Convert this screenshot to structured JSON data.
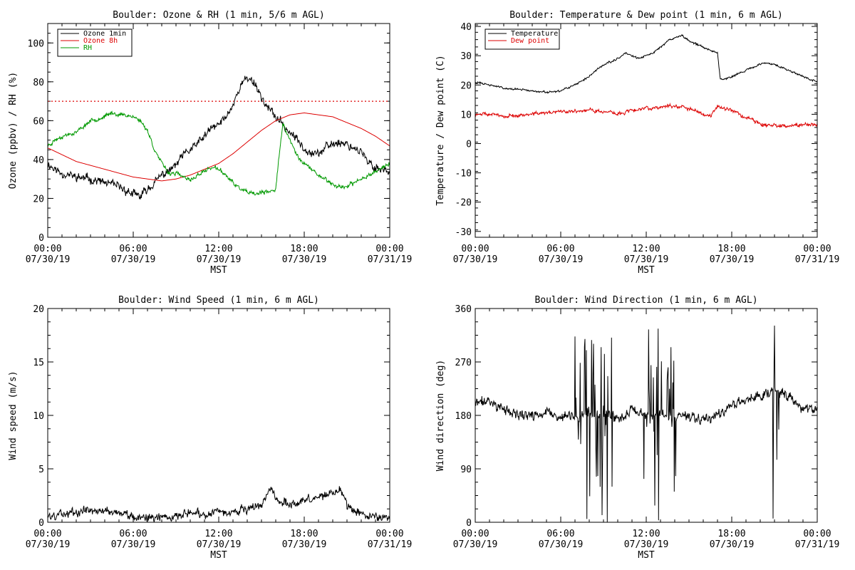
{
  "colors": {
    "ozone_1min": "#000000",
    "ozone_8h": "#dd0000",
    "rh": "#009900",
    "temperature": "#000000",
    "dew_point": "#dd0000",
    "wind": "#000000",
    "threshold": "#dd0000"
  },
  "chart_data": [
    {
      "id": "ozone",
      "type": "line",
      "title": "Boulder: Ozone & RH (1 min, 5/6 m AGL)",
      "xlabel": "MST",
      "ylabel": "Ozone (ppbv) / RH (%)",
      "xlim": [
        0,
        24
      ],
      "ylim": [
        0,
        110
      ],
      "yticks": [
        0,
        20,
        40,
        60,
        80,
        100
      ],
      "x_ticks": [
        "00:00",
        "06:00",
        "12:00",
        "18:00",
        "00:00"
      ],
      "x_dates": [
        "07/30/19",
        "07/30/19",
        "07/30/19",
        "07/30/19",
        "07/31/19"
      ],
      "legend_position": "top-left",
      "reference_line": {
        "y": 70,
        "color": "#dd0000",
        "style": "dotted"
      },
      "series": [
        {
          "name": "Ozone 1min",
          "color": "#000000",
          "noise": 2.5,
          "seed": 11,
          "x": [
            0,
            0.5,
            1,
            2,
            3,
            4,
            5,
            5.5,
            6,
            6.5,
            7,
            7.5,
            8,
            8.5,
            9,
            9.5,
            10,
            10.5,
            11,
            11.5,
            12,
            12.5,
            13,
            13.5,
            14,
            14.5,
            15,
            15.5,
            16,
            16.5,
            17,
            17.5,
            18,
            18.5,
            19,
            19.5,
            20,
            20.5,
            21,
            21.5,
            22,
            22.5,
            23,
            23.5,
            24
          ],
          "y": [
            38,
            35,
            33,
            31,
            30,
            28,
            26,
            24,
            22,
            21,
            25,
            28,
            32,
            34,
            37,
            42,
            45,
            48,
            52,
            56,
            58,
            62,
            68,
            78,
            82,
            80,
            72,
            66,
            62,
            58,
            54,
            50,
            46,
            44,
            43,
            46,
            48,
            49,
            48,
            46,
            44,
            38,
            36,
            35,
            34
          ]
        },
        {
          "name": "Ozone 8h",
          "color": "#dd0000",
          "noise": 0,
          "seed": 0,
          "x": [
            0,
            2,
            4,
            6,
            7,
            8,
            9,
            10,
            11,
            12,
            13,
            14,
            15,
            16,
            17,
            18,
            19,
            20,
            21,
            22,
            23,
            24
          ],
          "y": [
            46,
            39,
            35,
            31,
            30,
            29,
            30,
            32,
            35,
            38,
            43,
            49,
            55,
            60,
            63,
            64,
            63,
            62,
            59,
            56,
            52,
            47
          ]
        },
        {
          "name": "RH",
          "color": "#009900",
          "noise": 1.2,
          "seed": 23,
          "x": [
            0,
            0.5,
            1,
            2,
            2.5,
            3,
            3.5,
            4,
            4.5,
            5,
            5.5,
            6,
            6.5,
            7,
            7.5,
            8,
            8.5,
            9,
            9.5,
            10,
            10.5,
            11,
            11.5,
            12,
            12.5,
            13,
            13.5,
            14,
            14.5,
            15,
            15.5,
            16,
            16.2,
            16.5,
            17,
            17.5,
            18,
            18.5,
            19,
            19.5,
            20,
            20.5,
            21,
            21.5,
            22,
            22.5,
            23,
            23.5,
            24
          ],
          "y": [
            47,
            50,
            52,
            54,
            57,
            60,
            61,
            62,
            64,
            63,
            63,
            62,
            60,
            55,
            45,
            38,
            33,
            33,
            31,
            29,
            32,
            34,
            36,
            35,
            32,
            28,
            25,
            23,
            22,
            23,
            23,
            25,
            40,
            58,
            50,
            42,
            38,
            35,
            32,
            30,
            27,
            26,
            26,
            28,
            30,
            32,
            34,
            36,
            38
          ]
        }
      ]
    },
    {
      "id": "temperature",
      "type": "line",
      "title": "Boulder: Temperature & Dew point (1 min, 6 m AGL)",
      "xlabel": "MST",
      "ylabel": "Temperature / Dew point (C)",
      "xlim": [
        0,
        24
      ],
      "ylim": [
        -32,
        41
      ],
      "yticks": [
        -30,
        -20,
        -10,
        0,
        10,
        20,
        30,
        40
      ],
      "x_ticks": [
        "00:00",
        "06:00",
        "12:00",
        "18:00",
        "00:00"
      ],
      "x_dates": [
        "07/30/19",
        "07/30/19",
        "07/30/19",
        "07/30/19",
        "07/31/19"
      ],
      "legend_position": "top-left",
      "series": [
        {
          "name": "Temperature",
          "color": "#000000",
          "noise": 0.4,
          "seed": 31,
          "x": [
            0,
            0.5,
            1,
            2,
            3,
            4,
            5,
            5.5,
            6,
            7,
            8,
            8.5,
            9,
            9.5,
            10,
            10.5,
            11,
            11.5,
            12,
            12.5,
            13,
            13.5,
            14,
            14.5,
            15,
            15.5,
            16,
            16.5,
            17,
            17.2,
            17.5,
            18,
            18.5,
            19,
            19.5,
            20,
            20.5,
            21,
            21.5,
            22,
            22.5,
            23,
            23.5,
            24
          ],
          "y": [
            21,
            20.5,
            20,
            19,
            18.5,
            18,
            17.5,
            17.5,
            18,
            20,
            23,
            25,
            27,
            28,
            29,
            31,
            30,
            29,
            30,
            31,
            33,
            35,
            36,
            37,
            35,
            34,
            33,
            32,
            31,
            22,
            22,
            23,
            24,
            25,
            26,
            27,
            27.5,
            27,
            26,
            25,
            24,
            23,
            22,
            21
          ]
        },
        {
          "name": "Dew point",
          "color": "#dd0000",
          "noise": 0.7,
          "seed": 47,
          "x": [
            0,
            1,
            2,
            3,
            4,
            5,
            6,
            7,
            8,
            9,
            10,
            11,
            12,
            13,
            14,
            15,
            16,
            16.5,
            17,
            17.5,
            18,
            18.5,
            19,
            19.5,
            20,
            21,
            22,
            23,
            24
          ],
          "y": [
            10,
            10,
            9.5,
            9.5,
            10,
            10.5,
            11,
            11,
            11.5,
            11,
            10,
            11.5,
            12,
            12.5,
            13,
            12,
            10,
            9.5,
            13,
            12,
            11.5,
            10,
            9,
            8,
            6.5,
            6,
            6,
            6.5,
            6
          ]
        }
      ]
    },
    {
      "id": "wind-speed",
      "type": "line",
      "title": "Boulder: Wind Speed (1 min, 6 m AGL)",
      "xlabel": "MST",
      "ylabel": "Wind speed (m/s)",
      "xlim": [
        0,
        24
      ],
      "ylim": [
        0,
        20
      ],
      "yticks": [
        0,
        5,
        10,
        15,
        20
      ],
      "x_ticks": [
        "00:00",
        "06:00",
        "12:00",
        "18:00",
        "00:00"
      ],
      "x_dates": [
        "07/30/19",
        "07/30/19",
        "07/30/19",
        "07/30/19",
        "07/31/19"
      ],
      "series": [
        {
          "name": "",
          "color": "#000000",
          "noise": 0.45,
          "seed": 59,
          "floor": 0,
          "x": [
            0,
            1,
            2,
            3,
            4,
            5,
            6,
            7,
            8,
            9,
            10,
            11,
            12,
            13,
            14,
            15,
            15.7,
            16,
            17,
            18,
            19,
            20,
            20.5,
            21,
            22,
            23,
            24
          ],
          "y": [
            0.5,
            0.8,
            1.0,
            1.2,
            1.1,
            0.9,
            0.6,
            0.4,
            0.5,
            0.7,
            0.9,
            0.8,
            0.9,
            1.1,
            1.2,
            1.5,
            3.5,
            2.0,
            1.8,
            2.0,
            2.3,
            2.8,
            3.2,
            1.5,
            0.8,
            0.5,
            0.6
          ]
        }
      ]
    },
    {
      "id": "wind-direction",
      "type": "line",
      "title": "Boulder: Wind Direction (1 min, 6 m AGL)",
      "xlabel": "MST",
      "ylabel": "Wind direction (deg)",
      "xlim": [
        0,
        24
      ],
      "ylim": [
        0,
        360
      ],
      "yticks": [
        0,
        90,
        180,
        270,
        360
      ],
      "x_ticks": [
        "00:00",
        "06:00",
        "12:00",
        "18:00",
        "00:00"
      ],
      "x_dates": [
        "07/30/19",
        "07/30/19",
        "07/30/19",
        "07/30/19",
        "07/31/19"
      ],
      "series": [
        {
          "name": "",
          "color": "#000000",
          "noise": 10,
          "seed": 71,
          "volatile": [
            [
              7,
              9.6
            ],
            [
              11.8,
              14.1
            ],
            [
              20.9,
              21.3
            ]
          ],
          "x": [
            0,
            1,
            2,
            3,
            4,
            5,
            6,
            7,
            8,
            9,
            10,
            11,
            12,
            13,
            14,
            15,
            16,
            17,
            18,
            19,
            20,
            21,
            22,
            23,
            24
          ],
          "y": [
            200,
            205,
            190,
            180,
            180,
            185,
            175,
            180,
            180,
            180,
            175,
            190,
            180,
            180,
            175,
            180,
            175,
            180,
            200,
            205,
            215,
            225,
            210,
            190,
            185
          ]
        }
      ]
    }
  ]
}
